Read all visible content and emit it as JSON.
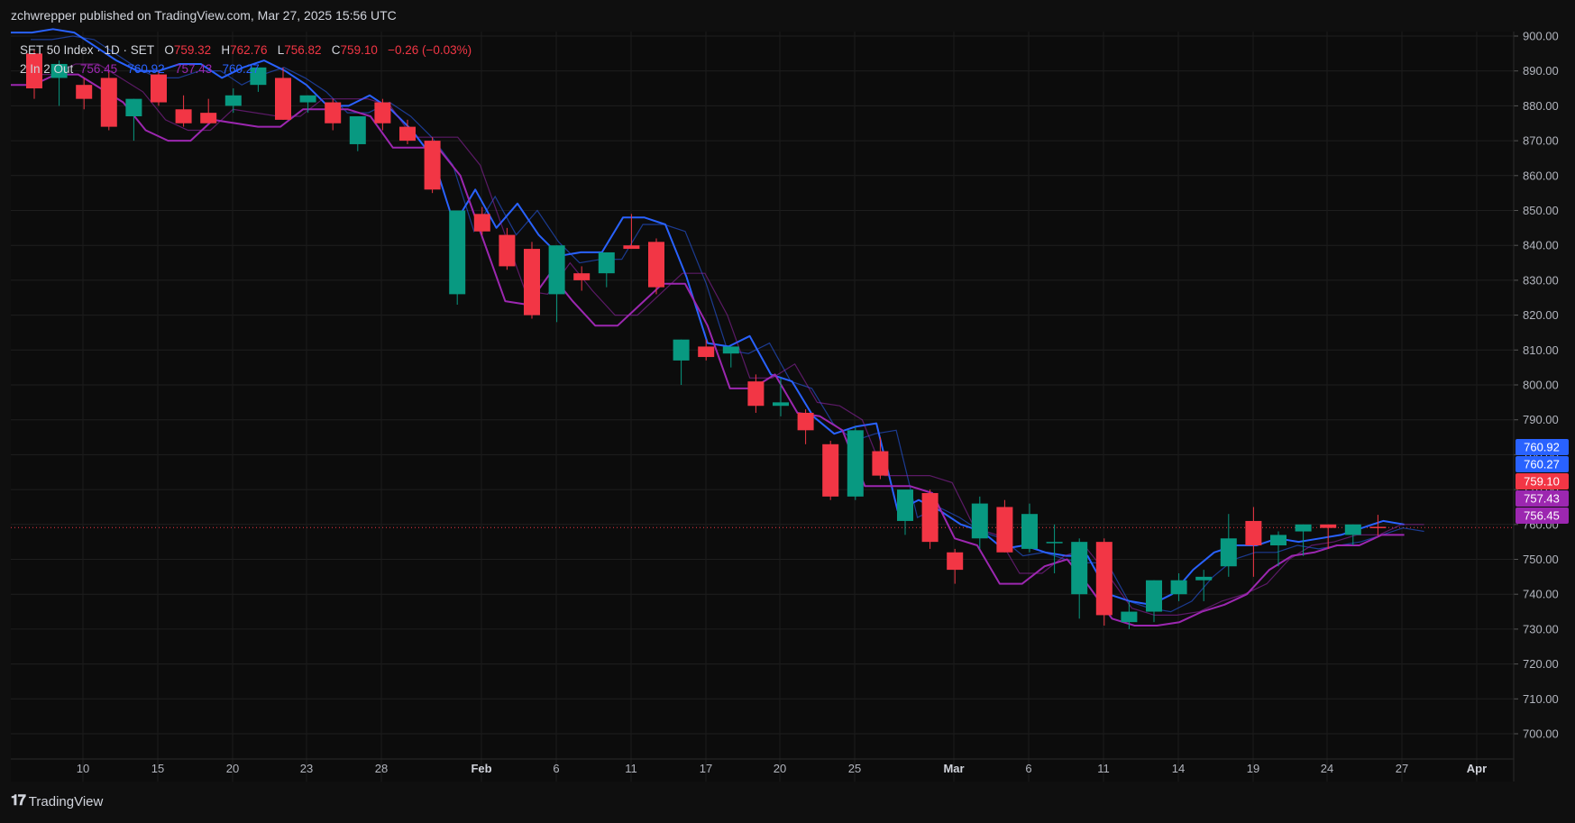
{
  "header": {
    "published": "zchwrepper published on TradingView.com, Mar 27, 2025 15:56 UTC"
  },
  "legend": {
    "symbol": "SET 50 Index · 1D · SET",
    "o_label": "O",
    "o": "759.32",
    "h_label": "H",
    "h": "762.76",
    "l_label": "L",
    "l": "756.82",
    "c_label": "C",
    "c": "759.10",
    "change": "−0.26 (−0.03%)",
    "indicator": "2 In 2 Out",
    "ind_v1": "756.45",
    "ind_v2": "760.92",
    "ind_v3": "757.43",
    "ind_v4": "760.27"
  },
  "footer": {
    "brand": "TradingView"
  },
  "colors": {
    "up": "#089981",
    "down": "#f23645",
    "blue": "#2962ff",
    "purple": "#9c27b0"
  },
  "chart_data": {
    "type": "candlestick",
    "ylim": [
      695,
      902
    ],
    "y_ticks": [
      "900.00",
      "890.00",
      "880.00",
      "870.00",
      "860.00",
      "850.00",
      "840.00",
      "830.00",
      "820.00",
      "810.00",
      "800.00",
      "790.00",
      "780.00",
      "770.00",
      "760.00",
      "750.00",
      "740.00",
      "730.00",
      "720.00",
      "710.00",
      "700.00"
    ],
    "x_ticks": [
      "10",
      "15",
      "20",
      "23",
      "28",
      "Feb",
      "6",
      "11",
      "17",
      "20",
      "25",
      "Mar",
      "6",
      "11",
      "14",
      "19",
      "24",
      "27",
      "Apr"
    ],
    "x_ticks_bold": [
      "Feb",
      "Mar",
      "Apr"
    ],
    "last_price": 759.1,
    "candles": [
      [
        895,
        896,
        882,
        885
      ],
      [
        888,
        893,
        880,
        892
      ],
      [
        886,
        888,
        879,
        882
      ],
      [
        888,
        890,
        873,
        874
      ],
      [
        877,
        882,
        870,
        882
      ],
      [
        889,
        890,
        880,
        881
      ],
      [
        879,
        883,
        874,
        875
      ],
      [
        878,
        882,
        875,
        875
      ],
      [
        880,
        885,
        878,
        883
      ],
      [
        886,
        890,
        884,
        891
      ],
      [
        888,
        891,
        876,
        876
      ],
      [
        881,
        883,
        878,
        883
      ],
      [
        881,
        882,
        873,
        875
      ],
      [
        869,
        877,
        867,
        877
      ],
      [
        881,
        882,
        873,
        875
      ],
      [
        874,
        876,
        869,
        870
      ],
      [
        870,
        871,
        855,
        856
      ],
      [
        826,
        850,
        823,
        850
      ],
      [
        849,
        851,
        843,
        844
      ],
      [
        843,
        845,
        833,
        834
      ],
      [
        839,
        841,
        819,
        820
      ],
      [
        826,
        840,
        818,
        840
      ],
      [
        832,
        834,
        827,
        830
      ],
      [
        832,
        838,
        828,
        838
      ],
      [
        840,
        849,
        839,
        839
      ],
      [
        841,
        842,
        826,
        828
      ],
      [
        807,
        813,
        800,
        813
      ],
      [
        811,
        813,
        807,
        808
      ],
      [
        809,
        811,
        805,
        811
      ],
      [
        801,
        803,
        792,
        794
      ],
      [
        794,
        802,
        791,
        795
      ],
      [
        792,
        793,
        783,
        787
      ],
      [
        783,
        784,
        767,
        768
      ],
      [
        768,
        788,
        767,
        787
      ],
      [
        781,
        785,
        773,
        774
      ],
      [
        761,
        768,
        757,
        770
      ],
      [
        769,
        770,
        753,
        755
      ],
      [
        752,
        753,
        743,
        747
      ],
      [
        756,
        768,
        753,
        766
      ],
      [
        765,
        767,
        752,
        752
      ],
      [
        753,
        766,
        752,
        763
      ],
      [
        755,
        760,
        746,
        755
      ],
      [
        740,
        756,
        733,
        755
      ],
      [
        755,
        756,
        731,
        734
      ],
      [
        732,
        738,
        730,
        735
      ],
      [
        735,
        744,
        732,
        744
      ],
      [
        740,
        746,
        738,
        744
      ],
      [
        744,
        747,
        738,
        745
      ],
      [
        748,
        763,
        745,
        756
      ],
      [
        761,
        765,
        745,
        754
      ],
      [
        754,
        758,
        748,
        757
      ],
      [
        758,
        760,
        751,
        760
      ],
      [
        760,
        760,
        753,
        759
      ],
      [
        757,
        760,
        754,
        760
      ],
      [
        759.32,
        762.76,
        756.82,
        759.1
      ]
    ],
    "series": [
      {
        "name": "2 In 2 Out",
        "color": "#2962ff",
        "values": [
          901,
          901,
          902,
          901,
          897,
          893,
          890,
          890,
          892,
          892,
          888,
          891,
          893,
          890,
          886,
          880,
          880,
          883,
          879,
          873,
          865,
          846,
          856,
          845,
          852,
          843,
          837,
          838,
          838,
          848,
          848,
          846,
          831,
          812,
          811,
          814,
          803,
          801,
          791,
          786,
          788,
          789,
          764,
          767,
          764,
          760,
          758,
          753,
          754,
          752,
          751,
          751,
          740,
          738,
          737,
          740,
          747,
          752,
          754,
          754,
          756,
          755,
          756,
          757,
          759,
          761,
          760
        ]
      },
      {
        "name": "2 In 2 Out",
        "color": "#9c27b0",
        "values": [
          886,
          886,
          889,
          889,
          885,
          881,
          873,
          870,
          870,
          876,
          875,
          874,
          874,
          879,
          879,
          879,
          877,
          868,
          868,
          868,
          860,
          842,
          824,
          823,
          832,
          824,
          817,
          817,
          823,
          829,
          829,
          817,
          799,
          799,
          803,
          792,
          791,
          787,
          771,
          771,
          771,
          769,
          756,
          754,
          743,
          743,
          748,
          750,
          742,
          733,
          731,
          731,
          732,
          735,
          737,
          740,
          747,
          751,
          752,
          754,
          754,
          757,
          757
        ]
      }
    ],
    "price_tags": [
      {
        "label": "760.92",
        "value": 760.92,
        "color": "#2962ff"
      },
      {
        "label": "760.27",
        "value": 760.27,
        "color": "#2962ff"
      },
      {
        "label": "759.10",
        "value": 759.1,
        "color": "#f23645"
      },
      {
        "label": "757.43",
        "value": 757.43,
        "color": "#9c27b0"
      },
      {
        "label": "756.45",
        "value": 756.45,
        "color": "#9c27b0"
      }
    ]
  }
}
